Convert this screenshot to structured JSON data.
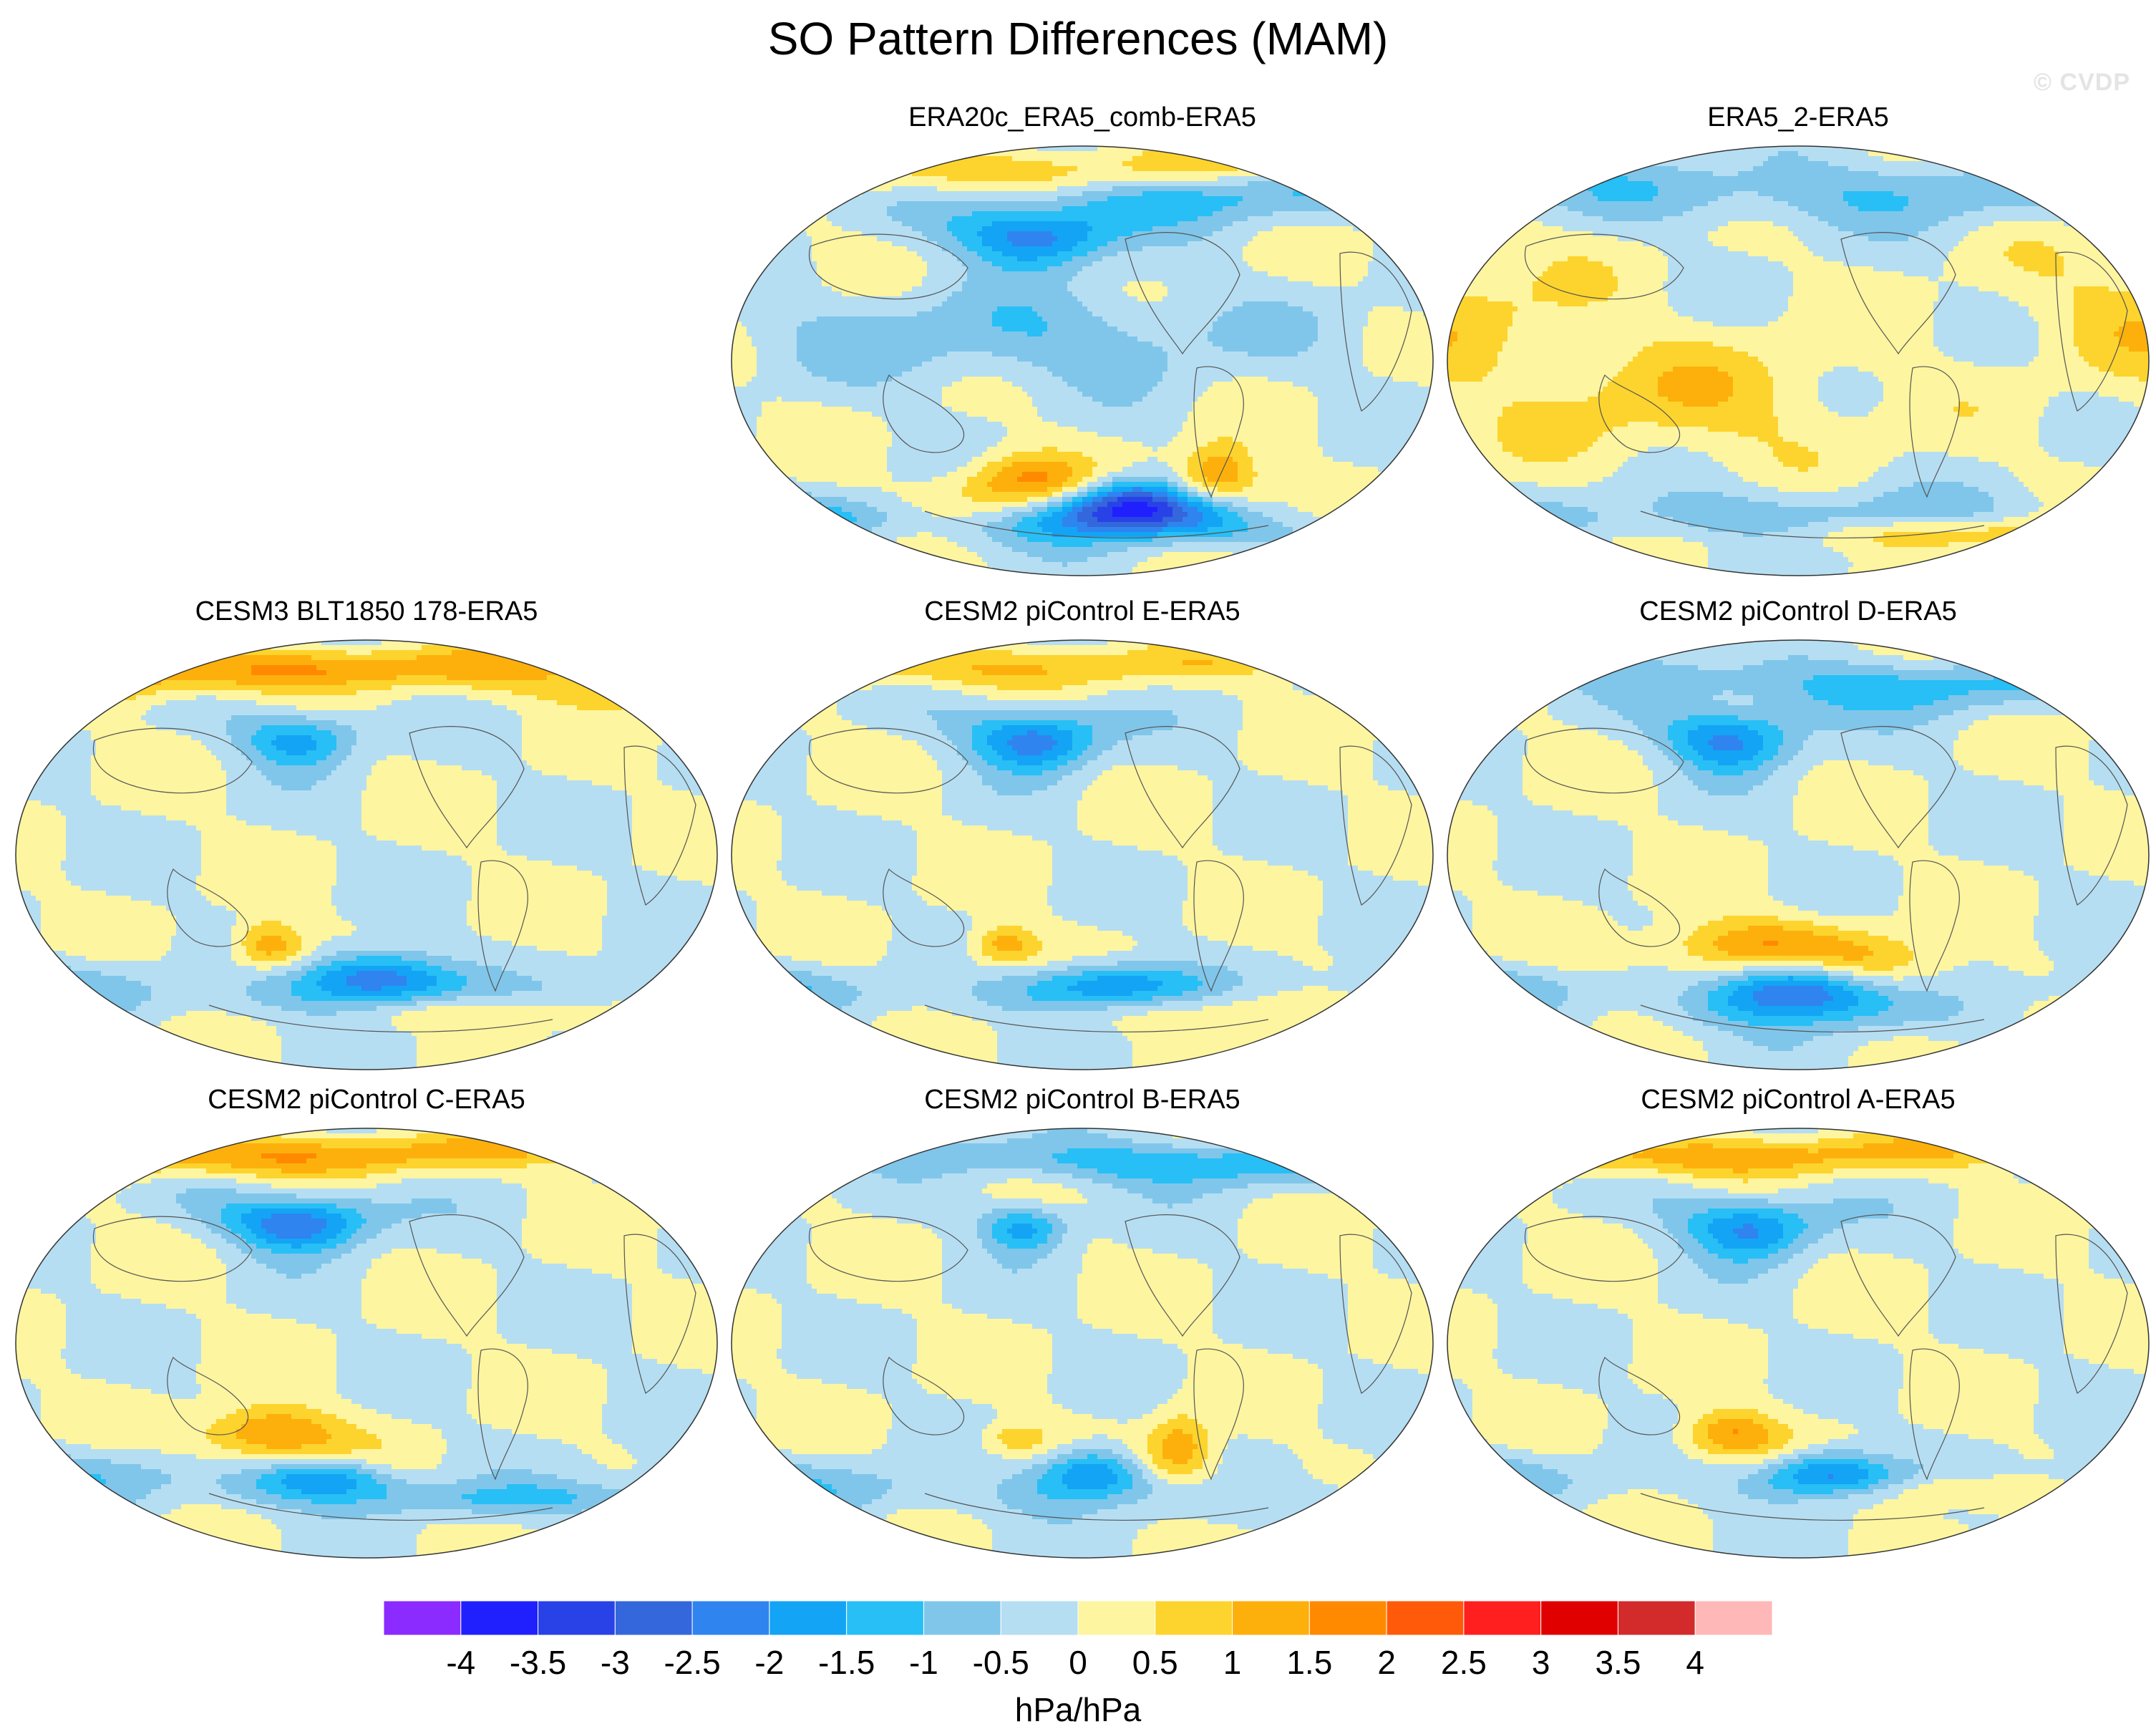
{
  "title": "SO Pattern Differences (MAM)",
  "watermark": "© CVDP",
  "chart_data": {
    "type": "contour-map-panels",
    "title": "SO Pattern Differences (MAM)",
    "projection": "Robinson, Pacific-centered",
    "panels": [
      {
        "id": "era20c",
        "label": "ERA20c_ERA5_comb-ERA5",
        "features": [
          {
            "lon": 185,
            "lat": 52,
            "sx": 18,
            "sy": 9,
            "amp": -2.4
          },
          {
            "lon": 235,
            "lat": -62,
            "sx": 14,
            "sy": 8,
            "amp": -4.1
          },
          {
            "lon": 180,
            "lat": -50,
            "sx": 16,
            "sy": 8,
            "amp": 1.6
          },
          {
            "lon": 280,
            "lat": -48,
            "sx": 10,
            "sy": 9,
            "amp": 1.7
          },
          {
            "lon": 140,
            "lat": 78,
            "sx": 30,
            "sy": 7,
            "amp": 1.3
          },
          {
            "lon": 280,
            "lat": 70,
            "sx": 35,
            "sy": 9,
            "amp": -1.1
          },
          {
            "lon": 60,
            "lat": -65,
            "sx": 20,
            "sy": 6,
            "amp": -1.2
          },
          {
            "lon": 180,
            "lat": 10,
            "sx": 90,
            "sy": 14,
            "amp": -0.9
          }
        ]
      },
      {
        "id": "era5_2",
        "label": "ERA5_2-ERA5",
        "features": [
          {
            "lon": 240,
            "lat": 70,
            "sx": 60,
            "sy": 10,
            "amp": -0.9
          },
          {
            "lon": 150,
            "lat": -15,
            "sx": 60,
            "sy": 18,
            "amp": 0.8
          },
          {
            "lon": 300,
            "lat": -72,
            "sx": 20,
            "sy": 5,
            "amp": 1.2
          },
          {
            "lon": 200,
            "lat": -65,
            "sx": 60,
            "sy": 9,
            "amp": -0.8
          },
          {
            "lon": 30,
            "lat": 20,
            "sx": 40,
            "sy": 20,
            "amp": 0.7
          }
        ]
      },
      {
        "id": "cesm3",
        "label": "CESM3 BLT1850 178-ERA5",
        "features": [
          {
            "lon": 175,
            "lat": 48,
            "sx": 14,
            "sy": 8,
            "amp": -1.8
          },
          {
            "lon": 215,
            "lat": -52,
            "sx": 18,
            "sy": 8,
            "amp": -2.7
          },
          {
            "lon": 160,
            "lat": -38,
            "sx": 10,
            "sy": 7,
            "amp": 1.6
          },
          {
            "lon": 140,
            "lat": 78,
            "sx": 30,
            "sy": 6,
            "amp": 1.2
          },
          {
            "lon": 20,
            "lat": 70,
            "sx": 30,
            "sy": 7,
            "amp": 1.0
          },
          {
            "lon": 270,
            "lat": -65,
            "sx": 15,
            "sy": 5,
            "amp": 0.9
          },
          {
            "lon": 40,
            "lat": -55,
            "sx": 30,
            "sy": 8,
            "amp": -1.0
          }
        ]
      },
      {
        "id": "cesm2e",
        "label": "CESM2 piControl E-ERA5",
        "features": [
          {
            "lon": 185,
            "lat": 48,
            "sx": 16,
            "sy": 9,
            "amp": -2.4
          },
          {
            "lon": 225,
            "lat": -55,
            "sx": 20,
            "sy": 7,
            "amp": -2.2
          },
          {
            "lon": 170,
            "lat": -38,
            "sx": 10,
            "sy": 6,
            "amp": 1.4
          },
          {
            "lon": 285,
            "lat": -63,
            "sx": 18,
            "sy": 6,
            "amp": 0.9
          },
          {
            "lon": 40,
            "lat": -55,
            "sx": 25,
            "sy": 7,
            "amp": -1.1
          },
          {
            "lon": 140,
            "lat": 78,
            "sx": 30,
            "sy": 6,
            "amp": 1.0
          }
        ]
      },
      {
        "id": "cesm2d",
        "label": "CESM2 piControl D-ERA5",
        "features": [
          {
            "lon": 175,
            "lat": 48,
            "sx": 16,
            "sy": 9,
            "amp": -2.2
          },
          {
            "lon": 210,
            "lat": -57,
            "sx": 16,
            "sy": 9,
            "amp": -2.9
          },
          {
            "lon": 190,
            "lat": -38,
            "sx": 30,
            "sy": 8,
            "amp": 1.5
          },
          {
            "lon": 250,
            "lat": -45,
            "sx": 20,
            "sy": 8,
            "amp": 0.7
          },
          {
            "lon": 260,
            "lat": 70,
            "sx": 30,
            "sy": 8,
            "amp": -1.2
          },
          {
            "lon": 40,
            "lat": -55,
            "sx": 25,
            "sy": 7,
            "amp": -1.0
          }
        ]
      },
      {
        "id": "cesm2c",
        "label": "CESM2 piControl C-ERA5",
        "features": [
          {
            "lon": 175,
            "lat": 50,
            "sx": 17,
            "sy": 8,
            "amp": -2.6
          },
          {
            "lon": 190,
            "lat": -57,
            "sx": 14,
            "sy": 6,
            "amp": -2.0
          },
          {
            "lon": 160,
            "lat": -38,
            "sx": 20,
            "sy": 8,
            "amp": 1.8
          },
          {
            "lon": 130,
            "lat": 78,
            "sx": 30,
            "sy": 6,
            "amp": 1.5
          },
          {
            "lon": 300,
            "lat": -65,
            "sx": 30,
            "sy": 5,
            "amp": -0.9
          },
          {
            "lon": 60,
            "lat": -55,
            "sx": 30,
            "sy": 8,
            "amp": -0.9
          }
        ]
      },
      {
        "id": "cesm2b",
        "label": "CESM2 piControl B-ERA5",
        "features": [
          {
            "lon": 180,
            "lat": 48,
            "sx": 10,
            "sy": 7,
            "amp": -1.8
          },
          {
            "lon": 215,
            "lat": -55,
            "sx": 12,
            "sy": 8,
            "amp": -2.3
          },
          {
            "lon": 260,
            "lat": -45,
            "sx": 9,
            "sy": 10,
            "amp": 1.5
          },
          {
            "lon": 175,
            "lat": -40,
            "sx": 10,
            "sy": 5,
            "amp": 0.9
          },
          {
            "lon": 270,
            "lat": 75,
            "sx": 25,
            "sy": 7,
            "amp": -1.4
          },
          {
            "lon": 60,
            "lat": -60,
            "sx": 30,
            "sy": 8,
            "amp": -0.9
          }
        ]
      },
      {
        "id": "cesm2a",
        "label": "CESM2 piControl A-ERA5",
        "features": [
          {
            "lon": 185,
            "lat": 48,
            "sx": 16,
            "sy": 9,
            "amp": -2.2
          },
          {
            "lon": 225,
            "lat": -55,
            "sx": 14,
            "sy": 7,
            "amp": -2.4
          },
          {
            "lon": 175,
            "lat": -38,
            "sx": 14,
            "sy": 7,
            "amp": 1.6
          },
          {
            "lon": 150,
            "lat": 78,
            "sx": 30,
            "sy": 6,
            "amp": 1.3
          },
          {
            "lon": 285,
            "lat": -62,
            "sx": 15,
            "sy": 5,
            "amp": 1.0
          },
          {
            "lon": 40,
            "lat": -55,
            "sx": 25,
            "sy": 7,
            "amp": -1.0
          }
        ]
      }
    ],
    "colorbar": {
      "levels": [
        -4,
        -3.5,
        -3,
        -2.5,
        -2,
        -1.5,
        -1,
        -0.5,
        0,
        0.5,
        1,
        1.5,
        2,
        2.5,
        3,
        3.5,
        4
      ],
      "tick_labels": [
        "-4",
        "-3.5",
        "-3",
        "-2.5",
        "-2",
        "-1.5",
        "-1",
        "-0.5",
        "0",
        "0.5",
        "1",
        "1.5",
        "2",
        "2.5",
        "3",
        "3.5",
        "4"
      ],
      "colors": [
        "#8b2bff",
        "#2020ff",
        "#2842e8",
        "#3466dc",
        "#2f84f0",
        "#13a4f5",
        "#27bff5",
        "#80c6ea",
        "#b6def2",
        "#fdf5a0",
        "#fdd42e",
        "#fdb00c",
        "#ff8a00",
        "#ff5a0a",
        "#ff1f1f",
        "#e00000",
        "#d32b2b",
        "#ffb8b8"
      ],
      "label": "hPa/hPa"
    }
  }
}
